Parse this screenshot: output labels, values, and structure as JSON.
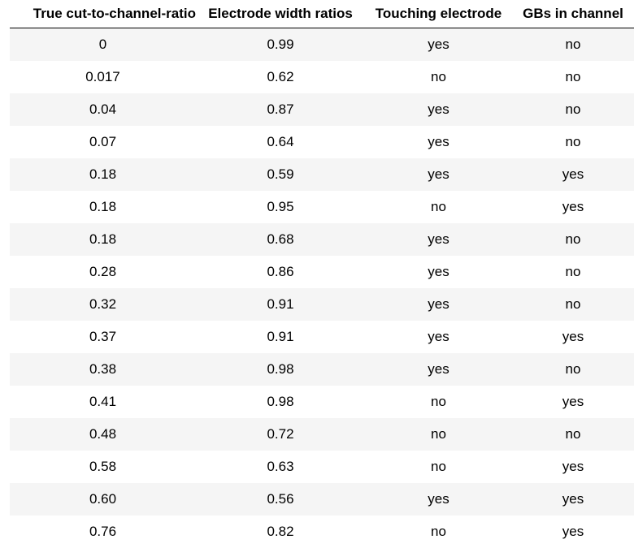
{
  "table": {
    "headers": [
      "True cut-to-channel-ratio",
      "Electrode width ratios",
      "Touching electrode",
      "GBs in channel"
    ],
    "rows": [
      [
        "0",
        "0.99",
        "yes",
        "no"
      ],
      [
        "0.017",
        "0.62",
        "no",
        "no"
      ],
      [
        "0.04",
        "0.87",
        "yes",
        "no"
      ],
      [
        "0.07",
        "0.64",
        "yes",
        "no"
      ],
      [
        "0.18",
        "0.59",
        "yes",
        "yes"
      ],
      [
        "0.18",
        "0.95",
        "no",
        "yes"
      ],
      [
        "0.18",
        "0.68",
        "yes",
        "no"
      ],
      [
        "0.28",
        "0.86",
        "yes",
        "no"
      ],
      [
        "0.32",
        "0.91",
        "yes",
        "no"
      ],
      [
        "0.37",
        "0.91",
        "yes",
        "yes"
      ],
      [
        "0.38",
        "0.98",
        "yes",
        "no"
      ],
      [
        "0.41",
        "0.98",
        "no",
        "yes"
      ],
      [
        "0.48",
        "0.72",
        "no",
        "no"
      ],
      [
        "0.58",
        "0.63",
        "no",
        "yes"
      ],
      [
        "0.60",
        "0.56",
        "yes",
        "yes"
      ],
      [
        "0.76",
        "0.82",
        "no",
        "yes"
      ]
    ],
    "colors": {
      "stripe": "#f5f5f5",
      "background": "#ffffff",
      "header_rule": "#000000"
    }
  }
}
